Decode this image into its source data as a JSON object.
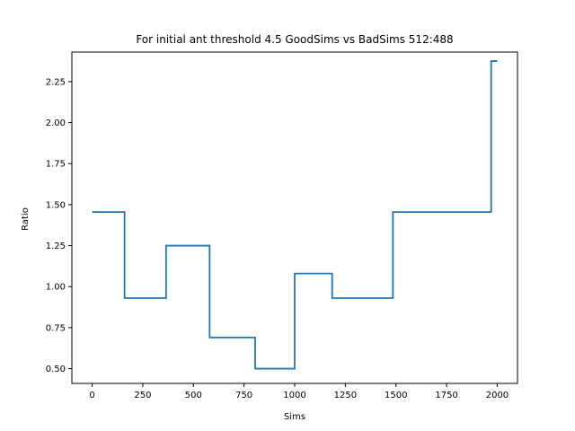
{
  "chart_data": {
    "type": "line",
    "title": "For initial ant threshold 4.5 GoodSims vs BadSims 512:488",
    "xlabel": "Sims",
    "ylabel": "Ratio",
    "xlim": [
      -100,
      2100
    ],
    "ylim": [
      0.41,
      2.43
    ],
    "xticks": [
      0,
      250,
      500,
      750,
      1000,
      1250,
      1500,
      1750,
      2000
    ],
    "xtick_labels": [
      "0",
      "250",
      "500",
      "750",
      "1000",
      "1250",
      "1500",
      "1750",
      "2000"
    ],
    "yticks": [
      0.5,
      0.75,
      1.0,
      1.25,
      1.5,
      1.75,
      2.0,
      2.25
    ],
    "ytick_labels": [
      "0.50",
      "0.75",
      "1.00",
      "1.25",
      "1.50",
      "1.75",
      "2.00",
      "2.25"
    ],
    "grid": false,
    "series": [
      {
        "color": "#1f77b4",
        "x": [
          0,
          160,
          160,
          365,
          365,
          580,
          580,
          805,
          805,
          1000,
          1000,
          1185,
          1185,
          1485,
          1485,
          1970,
          1970,
          2000
        ],
        "y": [
          1.455,
          1.455,
          0.93,
          0.93,
          1.25,
          1.25,
          0.69,
          0.69,
          0.5,
          0.5,
          1.08,
          1.08,
          0.93,
          0.93,
          1.455,
          1.455,
          2.375,
          2.375
        ]
      }
    ]
  }
}
